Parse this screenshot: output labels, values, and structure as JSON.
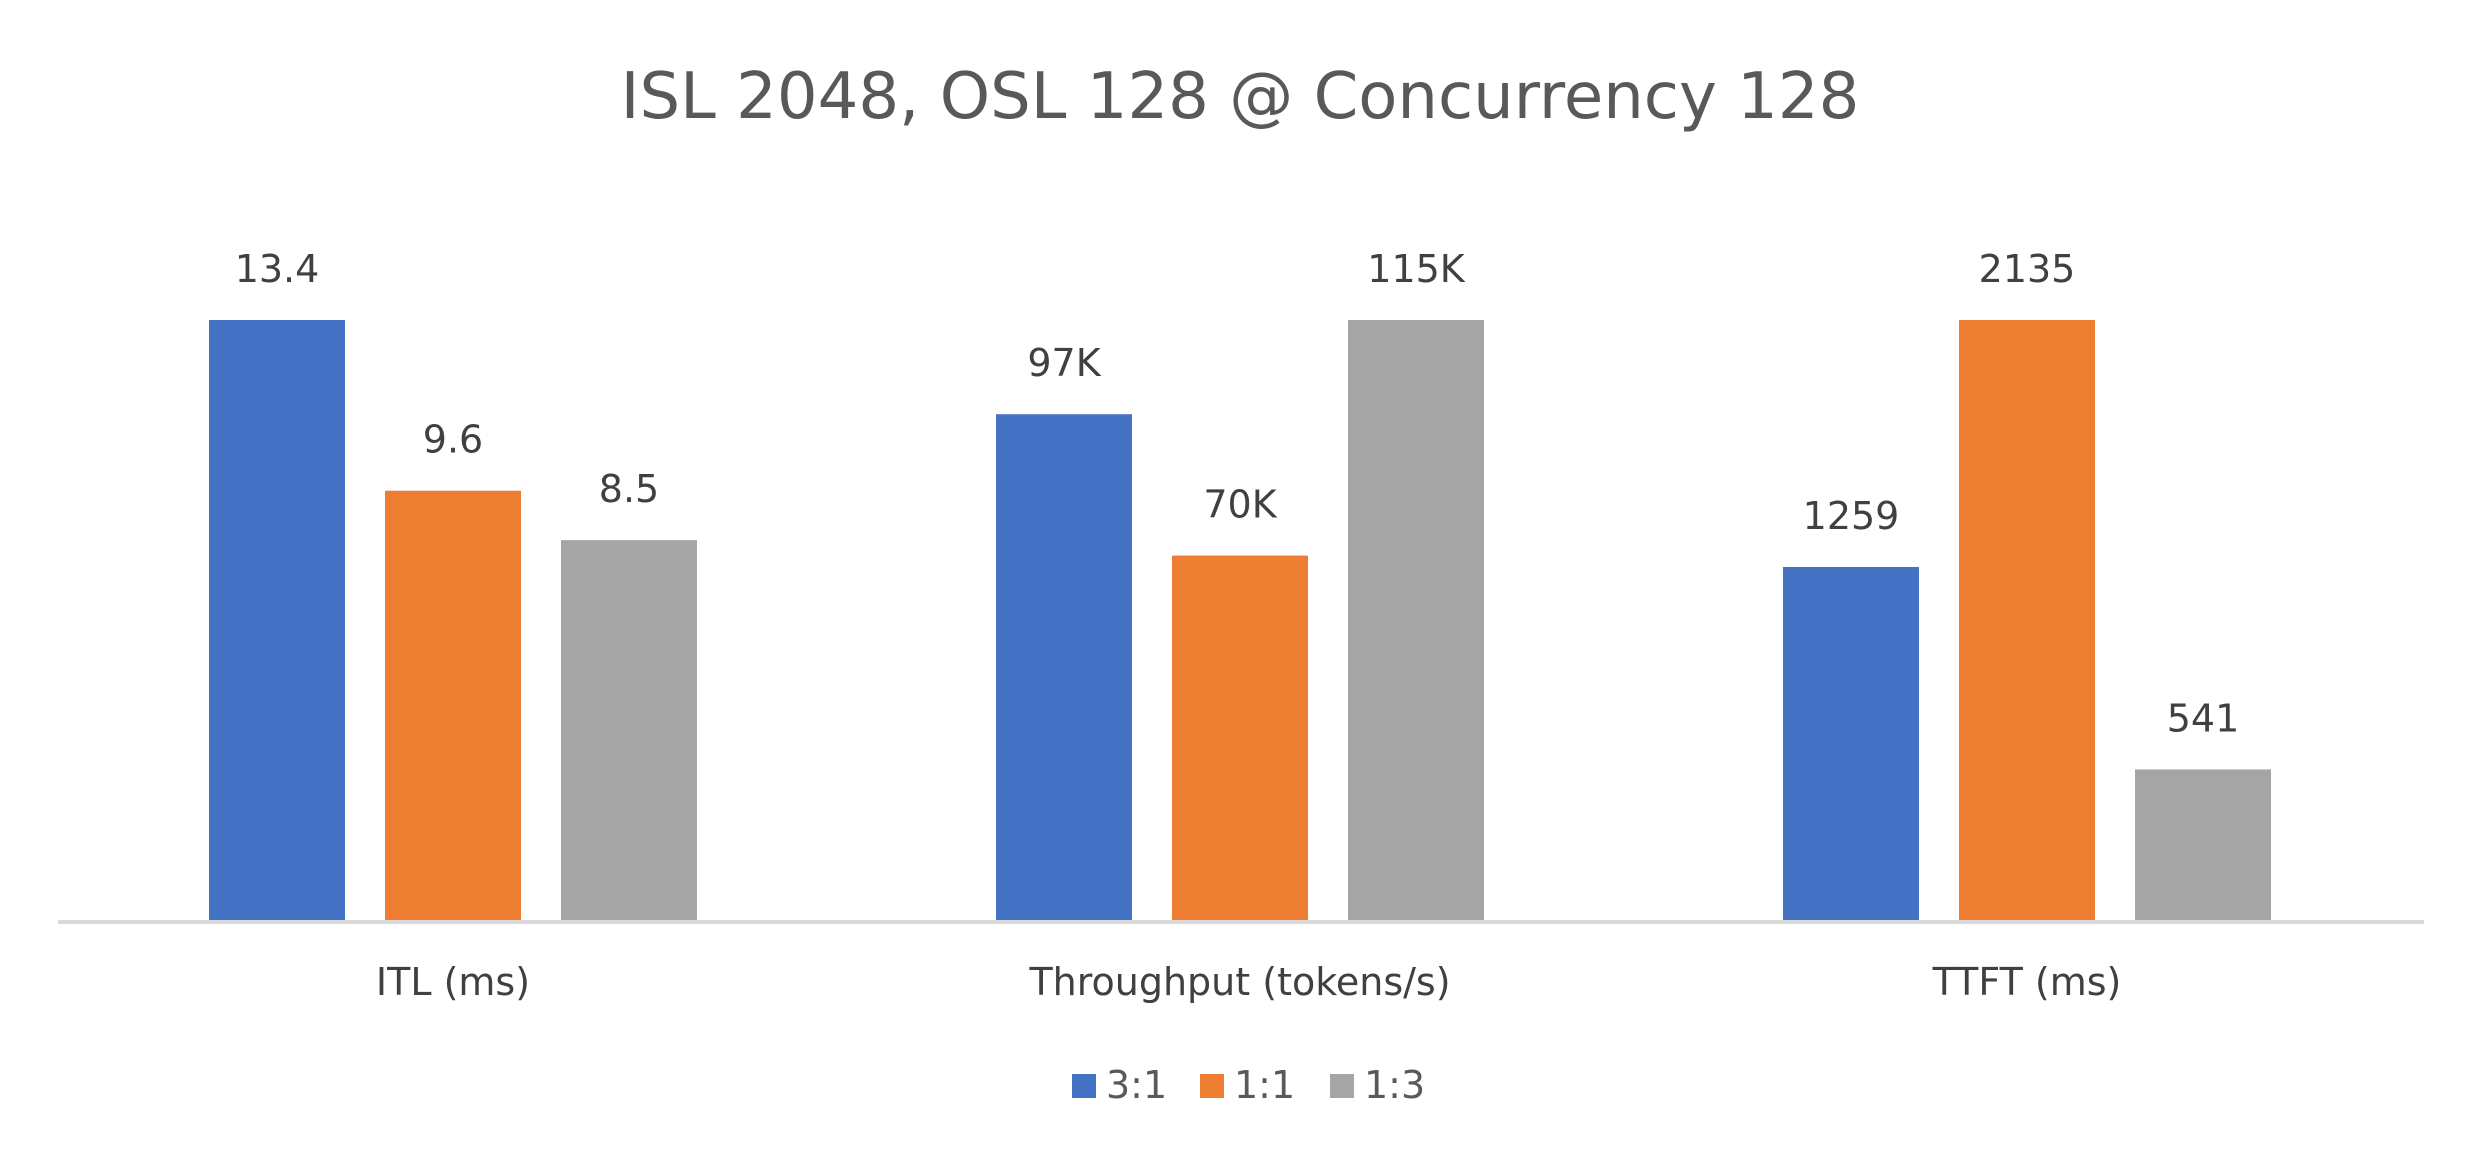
{
  "chart_data": {
    "type": "bar",
    "title": "ISL 2048, OSL 128 @ Concurrency 128",
    "categories": [
      "ITL (ms)",
      "Throughput (tokens/s)",
      "TTFT (ms)"
    ],
    "series": [
      {
        "name": "3:1",
        "color": "#4472C4"
      },
      {
        "name": "1:1",
        "color": "#ED7D31"
      },
      {
        "name": "1:3",
        "color": "#A5A5A5"
      }
    ],
    "groups": [
      {
        "category": "ITL (ms)",
        "values": [
          13.4,
          9.6,
          8.5
        ],
        "labels": [
          "13.4",
          "9.6",
          "8.5"
        ]
      },
      {
        "category": "Throughput (tokens/s)",
        "values": [
          97000,
          70000,
          115000
        ],
        "labels": [
          "97K",
          "70K",
          "115K"
        ]
      },
      {
        "category": "TTFT (ms)",
        "values": [
          1259,
          2135,
          541
        ],
        "labels": [
          "1259",
          "2135",
          "541"
        ]
      }
    ],
    "scale": "each category scaled to its own maximum",
    "grid": false,
    "legend_position": "bottom"
  }
}
